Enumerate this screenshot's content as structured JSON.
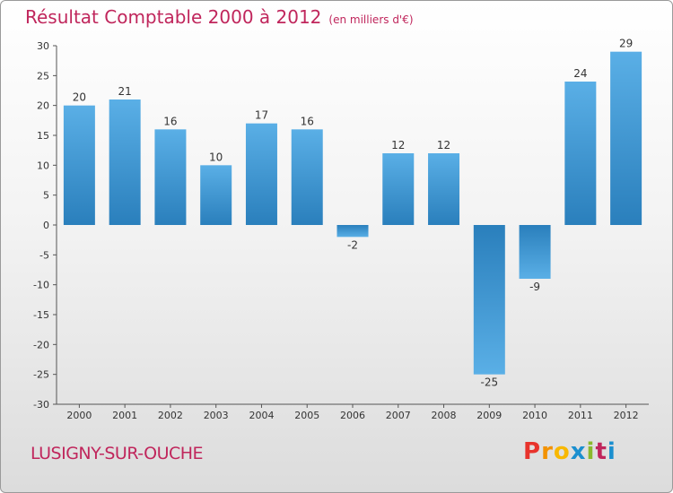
{
  "title": "Résultat Comptable 2000 à 2012",
  "subtitle": "(en milliers d'€)",
  "town": "LUSIGNY-SUR-OUCHE",
  "brand": {
    "letters": [
      "P",
      "r",
      "o",
      "x",
      "i",
      "t",
      "i"
    ],
    "colors": [
      "#e8332c",
      "#f39200",
      "#f8b800",
      "#1b8fcf",
      "#8ab92d",
      "#c0265c",
      "#1b8fcf"
    ]
  },
  "colors": {
    "bar_top": "#5aafe6",
    "bar_bottom": "#2a7fbc",
    "text": "#333333",
    "accent": "#c0265c"
  },
  "chart_data": {
    "type": "bar",
    "title": "Résultat Comptable 2000 à 2012",
    "xlabel": "",
    "ylabel": "en milliers d'€",
    "categories": [
      "2000",
      "2001",
      "2002",
      "2003",
      "2004",
      "2005",
      "2006",
      "2007",
      "2008",
      "2009",
      "2010",
      "2011",
      "2012"
    ],
    "values": [
      20,
      21,
      16,
      10,
      17,
      16,
      -2,
      12,
      12,
      -25,
      -9,
      24,
      29
    ],
    "ylim": [
      -30,
      30
    ],
    "yticks": [
      30,
      25,
      20,
      15,
      10,
      5,
      0,
      -5,
      -10,
      -15,
      -20,
      -25,
      -30
    ],
    "grid": false
  }
}
